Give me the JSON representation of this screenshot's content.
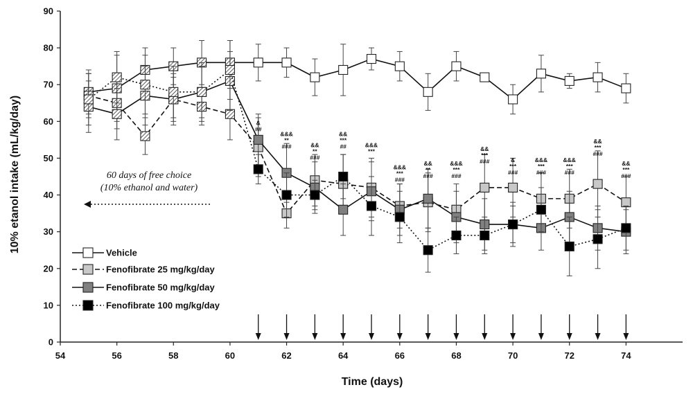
{
  "chart_data": {
    "type": "line",
    "xlabel": "Time (days)",
    "ylabel": "10% etanol intake (mL/kg/day)",
    "xlim": [
      54,
      76
    ],
    "ylim": [
      0,
      90
    ],
    "xticks": [
      54,
      56,
      58,
      60,
      62,
      64,
      66,
      68,
      70,
      72,
      74
    ],
    "yticks": [
      0,
      10,
      20,
      30,
      40,
      50,
      60,
      70,
      80,
      90
    ],
    "grid": false,
    "legend_position": "bottom-left",
    "annotation": {
      "line1": "60 days of free choice",
      "line2": "(10% ethanol and water)",
      "arrow": "left"
    },
    "treatment_arrows_x": [
      61,
      62,
      63,
      64,
      65,
      66,
      67,
      68,
      69,
      70,
      71,
      72,
      73,
      74
    ],
    "series": [
      {
        "name": "Vehicle",
        "line_style": "solid",
        "marker_color": "#ffffff",
        "x": [
          55,
          56,
          57,
          58,
          59,
          60,
          61,
          62,
          63,
          64,
          65,
          66,
          67,
          68,
          69,
          70,
          71,
          72,
          73,
          74
        ],
        "y": [
          68,
          69,
          74,
          75,
          76,
          76,
          76,
          76,
          72,
          74,
          77,
          75,
          68,
          75,
          72,
          66,
          73,
          71,
          72,
          69
        ],
        "err": [
          6,
          9,
          6,
          5,
          6,
          6,
          5,
          4,
          5,
          7,
          3,
          4,
          5,
          4,
          0,
          4,
          5,
          2,
          4,
          4
        ]
      },
      {
        "name": "Fenofibrate 25 mg/kg/day",
        "line_style": "dashed",
        "marker_color": "#c8c8c8",
        "x": [
          55,
          56,
          57,
          58,
          59,
          60,
          61,
          62,
          63,
          64,
          65,
          66,
          67,
          68,
          69,
          70,
          71,
          72,
          73,
          74
        ],
        "y": [
          67,
          65,
          56,
          66,
          64,
          62,
          53,
          35,
          44,
          43,
          42,
          37,
          38,
          36,
          42,
          42,
          39,
          39,
          43,
          38
        ],
        "err": [
          6,
          7,
          5,
          6,
          5,
          7,
          8,
          4,
          7,
          8,
          8,
          6,
          8,
          7,
          9,
          8,
          7,
          8,
          9,
          7
        ]
      },
      {
        "name": "Fenofibrate 50 mg/kg/day",
        "line_style": "solid",
        "marker_color": "#808080",
        "x": [
          55,
          56,
          57,
          58,
          59,
          60,
          61,
          62,
          63,
          64,
          65,
          66,
          67,
          68,
          69,
          70,
          71,
          72,
          73,
          74
        ],
        "y": [
          64,
          62,
          67,
          66,
          68,
          71,
          55,
          46,
          42,
          36,
          41,
          36,
          39,
          34,
          32,
          32,
          31,
          34,
          31,
          30
        ],
        "err": [
          7,
          7,
          8,
          7,
          7,
          8,
          7,
          8,
          7,
          7,
          8,
          7,
          8,
          7,
          7,
          6,
          6,
          7,
          6,
          6
        ]
      },
      {
        "name": "Fenofibrate 100 mg/kg/day",
        "line_style": "dotted",
        "marker_color": "#000000",
        "x": [
          55,
          56,
          57,
          58,
          59,
          60,
          61,
          62,
          63,
          64,
          65,
          66,
          67,
          68,
          69,
          70,
          71,
          72,
          73,
          74
        ],
        "y": [
          66,
          72,
          70,
          68,
          68,
          74,
          47,
          40,
          40,
          45,
          37,
          34,
          25,
          29,
          29,
          32,
          36,
          26,
          28,
          31
        ],
        "err": [
          7,
          7,
          8,
          7,
          8,
          8,
          4,
          6,
          4,
          6,
          8,
          7,
          6,
          5,
          5,
          5,
          6,
          8,
          8,
          6
        ]
      }
    ],
    "significance": [
      {
        "x": 61,
        "y": 59,
        "lines": [
          "&",
          "##"
        ]
      },
      {
        "x": 62,
        "y": 56,
        "lines": [
          "&&&",
          "**",
          "###"
        ]
      },
      {
        "x": 63,
        "y": 53,
        "lines": [
          "&&",
          "**",
          "###"
        ]
      },
      {
        "x": 64,
        "y": 56,
        "lines": [
          "&&",
          "***",
          "##"
        ]
      },
      {
        "x": 65,
        "y": 53,
        "lines": [
          "&&&",
          "***"
        ]
      },
      {
        "x": 66,
        "y": 47,
        "lines": [
          "&&&",
          "***",
          "###"
        ]
      },
      {
        "x": 67,
        "y": 48,
        "lines": [
          "&&",
          "**",
          "###"
        ]
      },
      {
        "x": 68,
        "y": 48,
        "lines": [
          "&&&",
          "***",
          "###"
        ]
      },
      {
        "x": 69,
        "y": 52,
        "lines": [
          "&&",
          "***",
          "###"
        ]
      },
      {
        "x": 70,
        "y": 49,
        "lines": [
          "&",
          "***",
          "###"
        ]
      },
      {
        "x": 71,
        "y": 49,
        "lines": [
          "&&&",
          "***",
          "###"
        ]
      },
      {
        "x": 72,
        "y": 49,
        "lines": [
          "&&&",
          "***",
          "###"
        ]
      },
      {
        "x": 73,
        "y": 54,
        "lines": [
          "&&",
          "***",
          "###"
        ]
      },
      {
        "x": 74,
        "y": 48,
        "lines": [
          "&&",
          "***",
          "###"
        ]
      }
    ]
  }
}
